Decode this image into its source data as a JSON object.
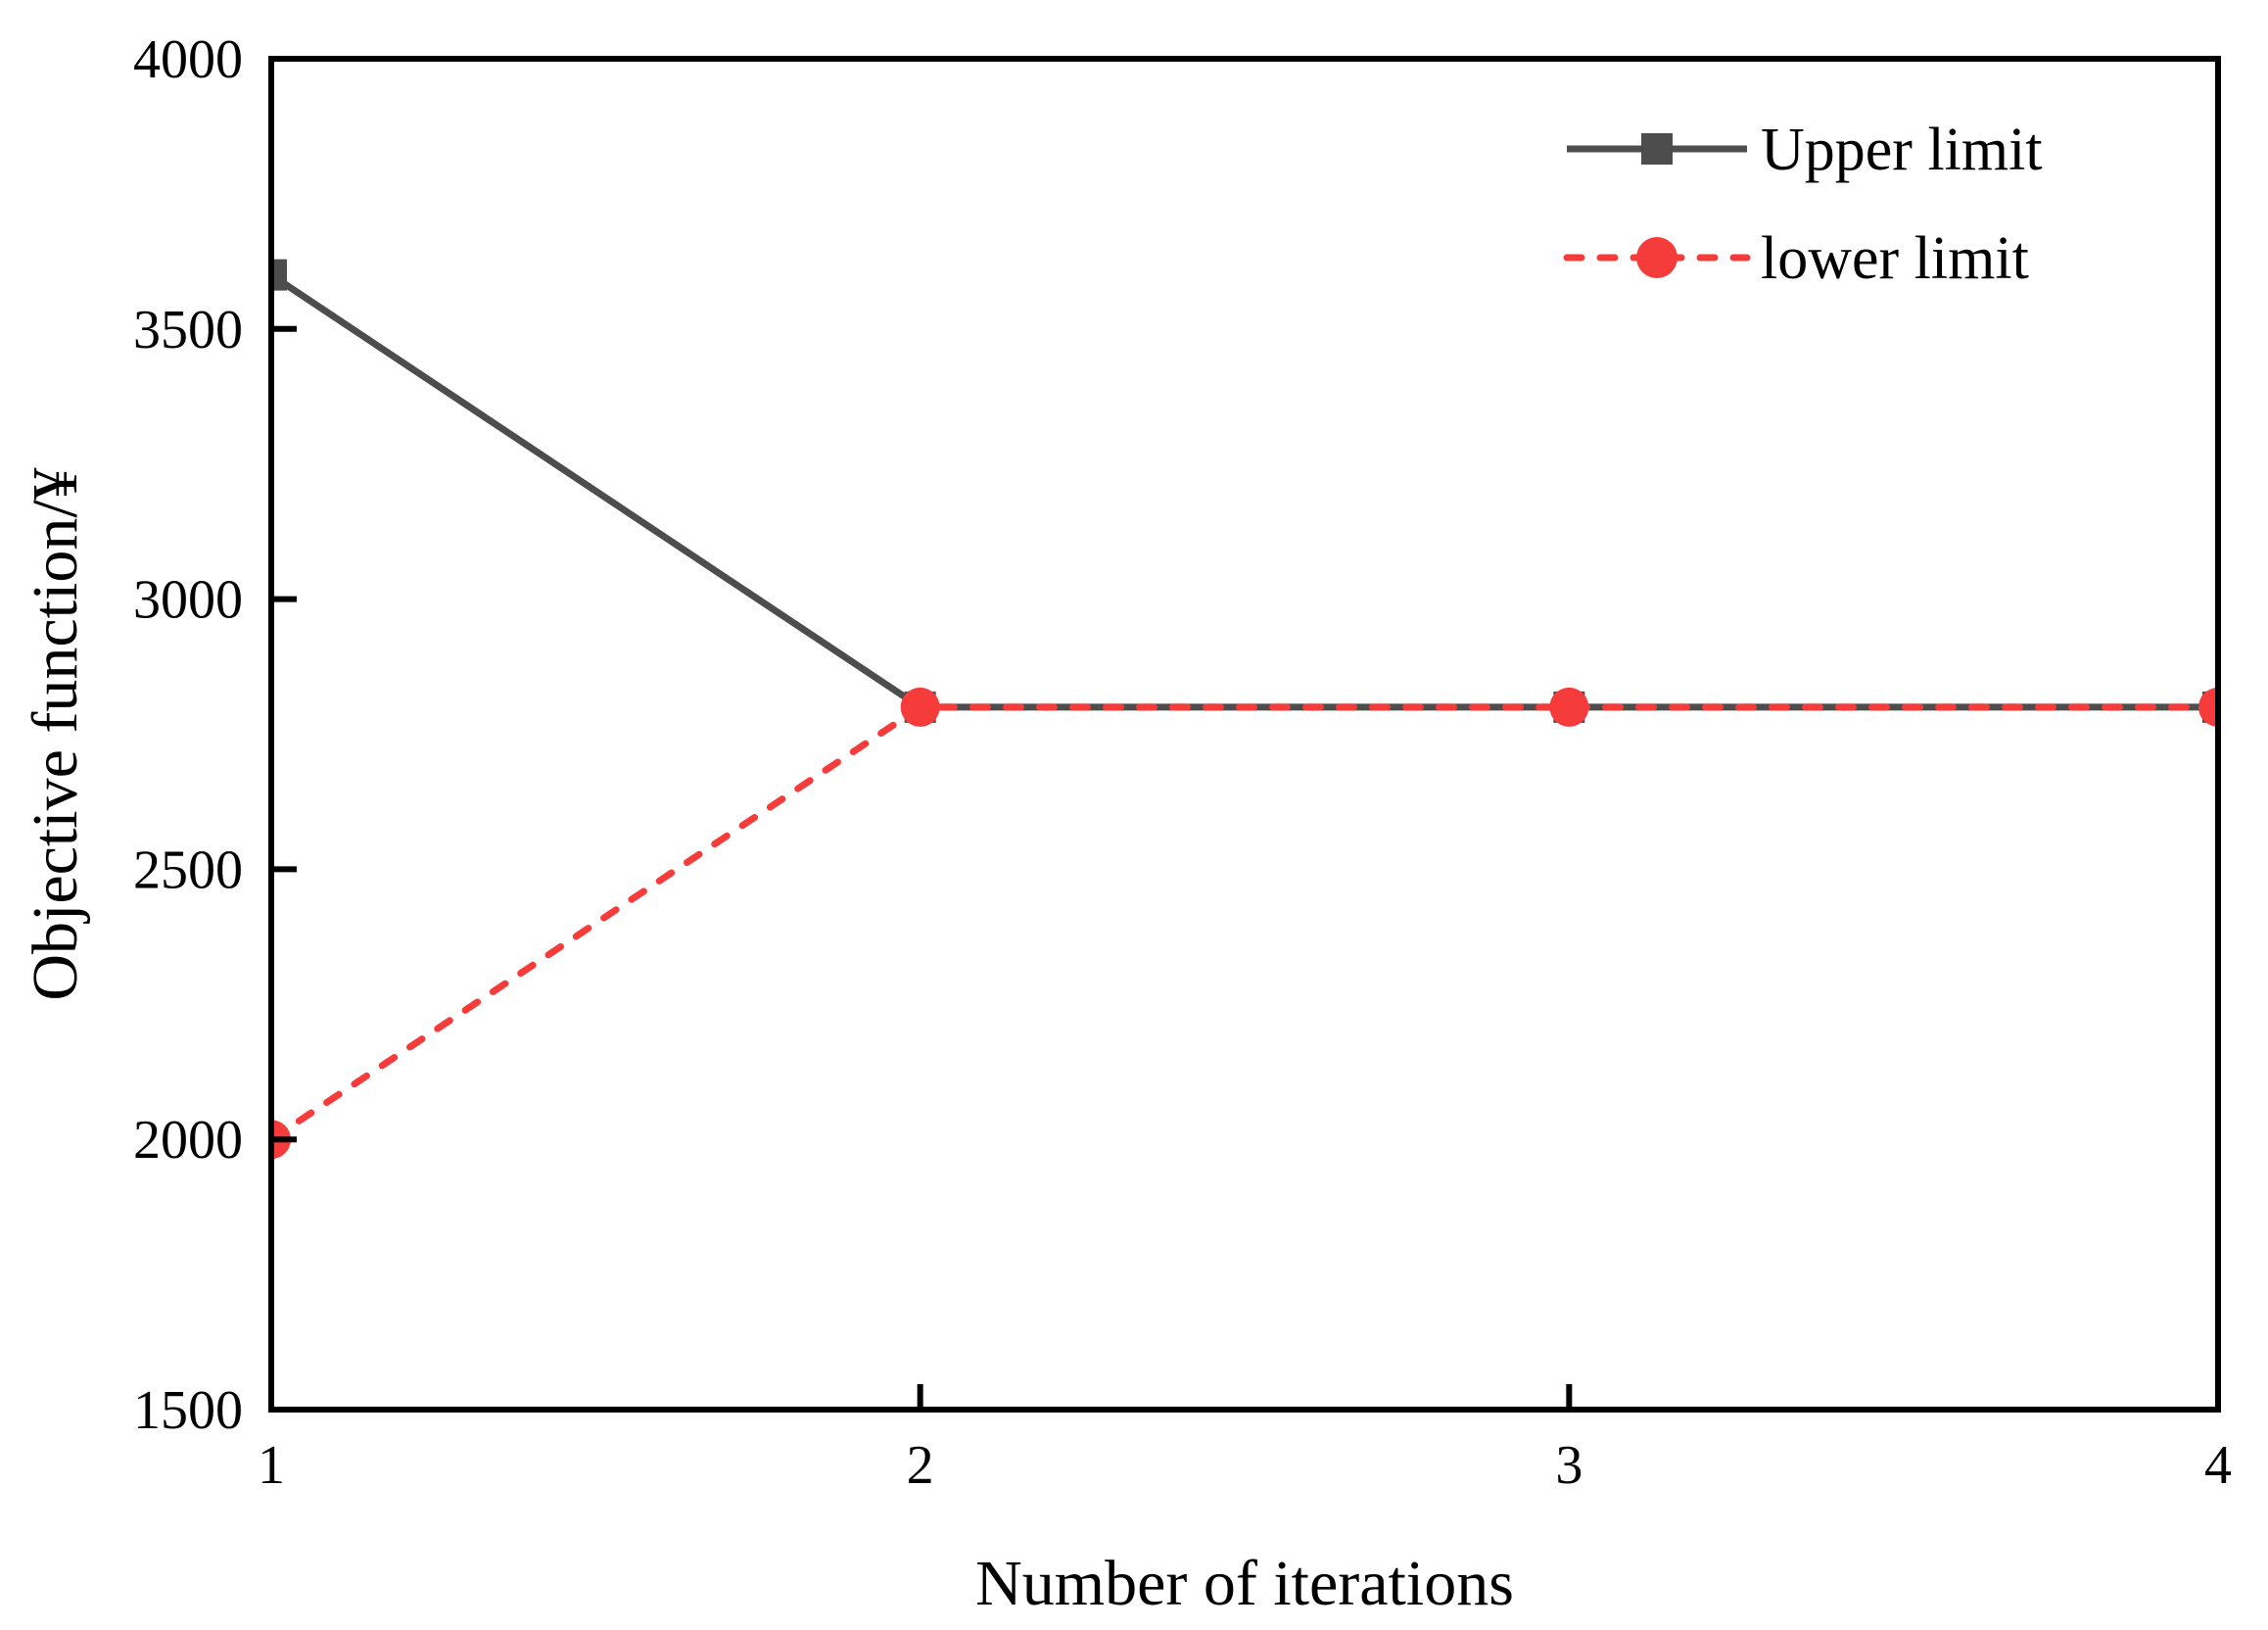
{
  "chart_data": {
    "type": "line",
    "x": [
      1,
      2,
      3,
      4
    ],
    "series": [
      {
        "name": "Upper limit",
        "values": [
          3600,
          2800,
          2800,
          2800
        ],
        "color": "#4d4d4d",
        "line_style": "solid",
        "marker": "square"
      },
      {
        "name": "lower limit",
        "values": [
          2000,
          2800,
          2800,
          2800
        ],
        "color": "#f63b3b",
        "line_style": "dashed",
        "marker": "circle"
      }
    ],
    "title": "",
    "xlabel": "Number of iterations",
    "ylabel": "Objective function/¥",
    "xlim": [
      1,
      4
    ],
    "ylim": [
      1500,
      4000
    ],
    "xticks": [
      "1",
      "2",
      "3",
      "4"
    ],
    "yticks": [
      "1500",
      "2000",
      "2500",
      "3000",
      "3500",
      "4000"
    ],
    "grid": false,
    "legend_position": "top-right",
    "axis_color": "#000000",
    "background_color": "#ffffff"
  }
}
